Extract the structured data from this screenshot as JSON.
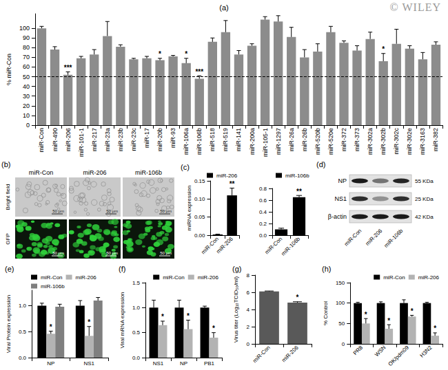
{
  "watermark": "© WILEY",
  "chart_data": [
    {
      "type": "bar",
      "title": "(a)",
      "ylabel": "% miR-Con",
      "categories": [
        "miR-Con",
        "miR-490",
        "miR-206",
        "miR-101-1",
        "miR-217",
        "miR-23a",
        "miR-23b",
        "miR-23c",
        "miR-17",
        "miR-20b",
        "miR-93",
        "miR-106a",
        "miR-106b",
        "miR-518",
        "miR-519",
        "miR-141",
        "miR-200a",
        "miR-105-1",
        "miR-1297",
        "miR-26a",
        "miR-26b",
        "miR-520b",
        "miR-520e",
        "miR-372",
        "miR-373",
        "miR-302a",
        "miR-302b",
        "miR-302c",
        "miR-302e",
        "miR-3163",
        "miR-382"
      ],
      "values": [
        100,
        78,
        52,
        69,
        73,
        92,
        81,
        68,
        69,
        67,
        71,
        64,
        48,
        86,
        96,
        73,
        82,
        109,
        107,
        91,
        70,
        76,
        96,
        85,
        77,
        89,
        66,
        84,
        79,
        68,
        83
      ],
      "errors": [
        2,
        3,
        3,
        2,
        5,
        15,
        2,
        1,
        2,
        2,
        1,
        5,
        3,
        4,
        12,
        4,
        2,
        3,
        6,
        10,
        8,
        8,
        6,
        2,
        5,
        7,
        8,
        15,
        3,
        7,
        3
      ],
      "significance": [
        null,
        null,
        "***",
        null,
        null,
        null,
        null,
        null,
        null,
        "*",
        null,
        "*",
        "***",
        null,
        null,
        null,
        null,
        null,
        null,
        null,
        null,
        null,
        null,
        null,
        null,
        null,
        "*",
        null,
        null,
        null,
        null
      ],
      "color": "#8c8c8c",
      "ylim": [
        0,
        115
      ],
      "yticks": [
        0,
        10,
        20,
        30,
        40,
        50,
        60,
        70,
        80,
        90,
        100
      ],
      "reference_line": 50,
      "grid": false
    },
    {
      "type": "bar",
      "title": "(c)",
      "ylabel": "miRNA expression",
      "categories": [
        "miR-Con",
        "miR-206"
      ],
      "series": [
        {
          "name": "miR-206",
          "color": "#000000",
          "values": [
            0.002,
            0.11
          ],
          "errors": [
            0.001,
            0.02
          ],
          "significance": [
            null,
            "**"
          ]
        }
      ],
      "ylim": [
        0,
        0.15
      ],
      "yticks": [
        {
          "value": 0,
          "label": "0.00"
        },
        0.05,
        {
          "value": 0.1,
          "label": "0.10"
        },
        0.15
      ],
      "legend": "upper left",
      "grid": false
    },
    {
      "type": "bar",
      "categories": [
        "miR-Con",
        "miR-106b"
      ],
      "series": [
        {
          "name": "miR-106b",
          "color": "#000000",
          "values": [
            0.1,
            0.65
          ],
          "errors": [
            0.02,
            0.03
          ],
          "significance": [
            null,
            "**"
          ]
        }
      ],
      "ylim": [
        0,
        0.8
      ],
      "yticks": [
        {
          "value": 0,
          "label": "0.0"
        },
        0.2,
        0.4,
        0.6,
        0.8
      ],
      "legend": "upper left",
      "grid": false
    },
    {
      "type": "bar",
      "title": "(e)",
      "ylabel": "Viral Protein expression",
      "categories": [
        "NP",
        "NS1"
      ],
      "series": [
        {
          "name": "miR-Con",
          "color": "#000000",
          "values": [
            1.0,
            1.0
          ],
          "errors": [
            0.05,
            0.1
          ],
          "significance": [
            null,
            null
          ]
        },
        {
          "name": "miR-206",
          "color": "#b3b3b3",
          "values": [
            0.46,
            0.42
          ],
          "errors": [
            0.05,
            0.18
          ],
          "significance": [
            "*",
            "*"
          ]
        },
        {
          "name": "miR-106b",
          "color": "#7f7f7f",
          "values": [
            0.98,
            1.1
          ],
          "errors": [
            0.05,
            0.06
          ],
          "significance": [
            null,
            null
          ]
        }
      ],
      "ylim": [
        0,
        1.3
      ],
      "yticks": [
        {
          "value": 0,
          "label": "0.0"
        },
        0.5,
        {
          "value": 1,
          "label": "1.0"
        }
      ],
      "legend": "upper left",
      "grid": false
    },
    {
      "type": "bar",
      "title": "(f)",
      "ylabel": "Viral mRNA expression",
      "categories": [
        "NS1",
        "NP",
        "PB1"
      ],
      "series": [
        {
          "name": "miR-Con",
          "color": "#000000",
          "values": [
            1.0,
            1.0,
            1.0
          ],
          "errors": [
            0.15,
            0.15,
            0.03
          ],
          "significance": [
            null,
            null,
            null
          ]
        },
        {
          "name": "miR-206",
          "color": "#b3b3b3",
          "values": [
            0.65,
            0.57,
            0.4
          ],
          "errors": [
            0.08,
            0.18,
            0.1
          ],
          "significance": [
            "*",
            "*",
            "*"
          ]
        }
      ],
      "ylim": [
        0,
        1.5
      ],
      "yticks": [
        {
          "value": 0,
          "label": "0.0"
        },
        0.5,
        {
          "value": 1,
          "label": "1.0"
        },
        1.5
      ],
      "legend": "upper right",
      "grid": false
    },
    {
      "type": "bar",
      "title": "(g)",
      "ylabel": "Virus titer (Log₁₀TCID₅₀/ml)",
      "categories": [
        "miR-Con",
        "miR-206"
      ],
      "values": [
        6.1,
        4.8
      ],
      "errors": [
        0.05,
        0.1
      ],
      "significance": [
        null,
        "*"
      ],
      "color": "#595959",
      "ylim": [
        0,
        8
      ],
      "yticks": [
        0,
        2,
        4,
        6,
        8
      ],
      "grid": false
    },
    {
      "type": "bar",
      "title": "(h)",
      "ylabel": "% Control",
      "categories": [
        "PR8",
        "WSN",
        "OK/pdm09",
        "H3N2"
      ],
      "series": [
        {
          "name": "miR-Con",
          "color": "#000000",
          "values": [
            100,
            100,
            100,
            100
          ],
          "errors": [
            2,
            3,
            8,
            2
          ],
          "significance": [
            null,
            null,
            null,
            null
          ]
        },
        {
          "name": "miR-206",
          "color": "#b3b3b3",
          "values": [
            50,
            37,
            67,
            20
          ],
          "errors": [
            12,
            10,
            3,
            7
          ],
          "significance": [
            "*",
            "*",
            "*",
            "*"
          ]
        }
      ],
      "ylim": [
        0,
        150
      ],
      "yticks": [
        0,
        50,
        100,
        150
      ],
      "legend": "upper right",
      "grid": false
    }
  ],
  "panel_b": {
    "title": "(b)",
    "columns": [
      "miR-Con",
      "miR-206",
      "miR-106b"
    ],
    "rows": [
      "Bright field",
      "GFP"
    ],
    "scale_bar": "50 μm"
  },
  "panel_d": {
    "title": "(d)",
    "columns": [
      "miR-Con",
      "miR-206",
      "miR-106b"
    ],
    "rows": [
      {
        "label": "NP",
        "size": "55 KDa",
        "intensity": [
          1,
          0.55,
          0.95
        ]
      },
      {
        "label": "NS1",
        "size": "25 KDa",
        "intensity": [
          0.9,
          0.4,
          0.9
        ]
      },
      {
        "label": "β-actin",
        "size": "42 KDa",
        "intensity": [
          1,
          1,
          1
        ]
      }
    ]
  }
}
